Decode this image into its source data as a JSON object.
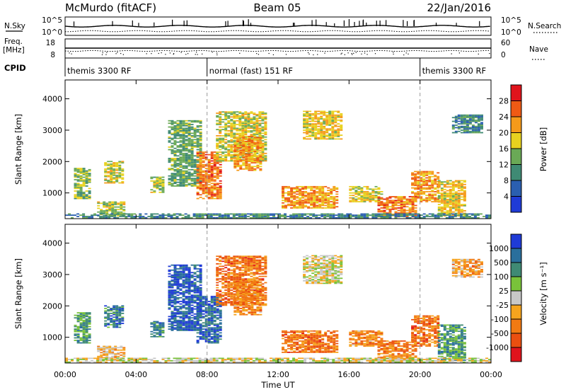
{
  "header": {
    "station": "McMurdo (fitACF)",
    "beam": "Beam 05",
    "date": "22/Jan/2016"
  },
  "top_panels": {
    "nsky_label": "N.Sky",
    "nsearch_label": "N.Search",
    "nsky_ticks": [
      "10^5",
      "10^0"
    ],
    "nsearch_ticks": [
      "10^5",
      "10^0"
    ],
    "freq_label_1": "Freq.",
    "freq_label_2": "[MHz]",
    "freq_ticks": [
      "18",
      "8"
    ],
    "nave_label": "Nave",
    "nave_ticks": [
      "60",
      "0"
    ],
    "cpid_label": "CPID",
    "cpid_segments": [
      {
        "label": "themis 3300 RF",
        "start_h": 0,
        "end_h": 8
      },
      {
        "label": "normal (fast) 151 RF",
        "start_h": 8,
        "end_h": 20
      },
      {
        "label": "themis 3300 RF",
        "start_h": 20,
        "end_h": 24
      }
    ]
  },
  "chart_data": [
    {
      "type": "heatmap",
      "name": "power",
      "ylabel": "Slant Range [km]",
      "ylim": [
        180,
        4600
      ],
      "yticks": [
        "1000",
        "2000",
        "3000",
        "4000"
      ],
      "ytick_values": [
        1000,
        2000,
        3000,
        4000
      ],
      "colorbar_label": "Power [dB]",
      "colorbar_ticks": [
        "4",
        "8",
        "12",
        "16",
        "20",
        "24",
        "28"
      ],
      "colorbar_values": [
        4,
        8,
        12,
        16,
        20,
        24,
        28
      ],
      "colorbar_range": [
        0,
        32
      ],
      "colors": [
        "#1f3bd6",
        "#2a5fb0",
        "#3f8a74",
        "#6aa956",
        "#e8d21f",
        "#f59a1a",
        "#ef5a14",
        "#e0141c"
      ],
      "regions": [
        {
          "t0": 0.5,
          "t1": 1.4,
          "r0": 800,
          "r1": 1800,
          "level": 0.45
        },
        {
          "t0": 1.8,
          "t1": 3.3,
          "r0": 250,
          "r1": 700,
          "level": 0.5
        },
        {
          "t0": 2.2,
          "t1": 3.3,
          "r0": 1300,
          "r1": 2000,
          "level": 0.55
        },
        {
          "t0": 4.8,
          "t1": 5.6,
          "r0": 1000,
          "r1": 1500,
          "level": 0.5
        },
        {
          "t0": 5.8,
          "t1": 7.6,
          "r0": 1200,
          "r1": 3300,
          "level": 0.4
        },
        {
          "t0": 7.4,
          "t1": 8.8,
          "r0": 800,
          "r1": 2300,
          "level": 0.75
        },
        {
          "t0": 8.5,
          "t1": 11.3,
          "r0": 2000,
          "r1": 3600,
          "level": 0.55
        },
        {
          "t0": 9.5,
          "t1": 11.0,
          "r0": 1700,
          "r1": 2800,
          "level": 0.7
        },
        {
          "t0": 12.2,
          "t1": 15.4,
          "r0": 500,
          "r1": 1200,
          "level": 0.7
        },
        {
          "t0": 13.4,
          "t1": 15.6,
          "r0": 2700,
          "r1": 3600,
          "level": 0.6
        },
        {
          "t0": 16.0,
          "t1": 17.8,
          "r0": 700,
          "r1": 1200,
          "level": 0.55
        },
        {
          "t0": 17.6,
          "t1": 19.8,
          "r0": 220,
          "r1": 900,
          "level": 0.75
        },
        {
          "t0": 19.5,
          "t1": 21.0,
          "r0": 700,
          "r1": 1700,
          "level": 0.7
        },
        {
          "t0": 21.0,
          "t1": 22.6,
          "r0": 250,
          "r1": 1400,
          "level": 0.6
        },
        {
          "t0": 21.8,
          "t1": 23.5,
          "r0": 2900,
          "r1": 3500,
          "level": 0.3
        },
        {
          "t0": 0.0,
          "t1": 24.0,
          "r0": 190,
          "r1": 330,
          "level": 0.3
        }
      ]
    },
    {
      "type": "heatmap",
      "name": "velocity",
      "ylabel": "Slant Range [km]",
      "ylim": [
        180,
        4600
      ],
      "yticks": [
        "1000",
        "2000",
        "3000",
        "4000"
      ],
      "ytick_values": [
        1000,
        2000,
        3000,
        4000
      ],
      "colorbar_label": "Velocity [m s⁻¹]",
      "colorbar_ticks": [
        "1000",
        "500",
        "100",
        "25",
        "-25",
        "-100",
        "-500",
        "-1000"
      ],
      "colors": [
        "#1f3bd6",
        "#2a6f9c",
        "#3f8a74",
        "#79c23a",
        "#c8c8c8",
        "#f5a41e",
        "#f27a12",
        "#ea4f10",
        "#e0141c"
      ],
      "regions": [
        {
          "t0": 0.5,
          "t1": 1.4,
          "r0": 800,
          "r1": 1800,
          "level": 0.3
        },
        {
          "t0": 1.8,
          "t1": 3.3,
          "r0": 250,
          "r1": 700,
          "level": 0.6
        },
        {
          "t0": 2.2,
          "t1": 3.3,
          "r0": 1300,
          "r1": 2000,
          "level": 0.2
        },
        {
          "t0": 4.8,
          "t1": 5.6,
          "r0": 1000,
          "r1": 1500,
          "level": 0.25
        },
        {
          "t0": 5.8,
          "t1": 7.6,
          "r0": 1200,
          "r1": 3300,
          "level": 0.1
        },
        {
          "t0": 7.4,
          "t1": 8.8,
          "r0": 800,
          "r1": 2300,
          "level": 0.15
        },
        {
          "t0": 8.5,
          "t1": 11.3,
          "r0": 2000,
          "r1": 3600,
          "level": 0.75
        },
        {
          "t0": 9.5,
          "t1": 11.0,
          "r0": 1700,
          "r1": 2800,
          "level": 0.7
        },
        {
          "t0": 12.2,
          "t1": 15.4,
          "r0": 500,
          "r1": 1200,
          "level": 0.75
        },
        {
          "t0": 13.4,
          "t1": 15.6,
          "r0": 2700,
          "r1": 3600,
          "level": 0.5
        },
        {
          "t0": 16.0,
          "t1": 17.8,
          "r0": 700,
          "r1": 1200,
          "level": 0.7
        },
        {
          "t0": 17.6,
          "t1": 19.8,
          "r0": 220,
          "r1": 900,
          "level": 0.72
        },
        {
          "t0": 19.5,
          "t1": 21.0,
          "r0": 700,
          "r1": 1700,
          "level": 0.75
        },
        {
          "t0": 21.0,
          "t1": 22.6,
          "r0": 250,
          "r1": 1400,
          "level": 0.3
        },
        {
          "t0": 21.8,
          "t1": 23.5,
          "r0": 2900,
          "r1": 3500,
          "level": 0.65
        },
        {
          "t0": 0.0,
          "t1": 24.0,
          "r0": 190,
          "r1": 330,
          "level": 0.5
        }
      ]
    }
  ],
  "time_axis": {
    "label": "Time UT",
    "ticks": [
      "00:00",
      "04:00",
      "08:00",
      "12:00",
      "16:00",
      "20:00",
      "00:00"
    ],
    "tick_hours": [
      0,
      4,
      8,
      12,
      16,
      20,
      24
    ],
    "xlim_hours": [
      0,
      24
    ]
  }
}
